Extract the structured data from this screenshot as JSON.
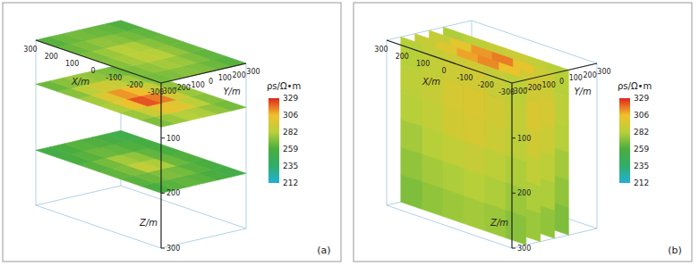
{
  "chart_data": [
    {
      "type": "horizontal_slices",
      "panel_label": "(a)",
      "xlabel": "X/m",
      "ylabel": "Y/m",
      "zlabel": "Z/m",
      "xlim": [
        -300,
        300
      ],
      "xticks": [
        -300,
        -200,
        -100,
        0,
        100,
        200,
        300
      ],
      "ylim": [
        -300,
        300
      ],
      "yticks": [
        -300,
        -200,
        -100,
        0,
        100,
        200,
        300
      ],
      "zlim": [
        0,
        300
      ],
      "zticks": [
        100,
        200,
        300
      ],
      "slice_positions": [
        0,
        80,
        200
      ],
      "cells": [
        [
          [
            268,
            270,
            272,
            270,
            266,
            262
          ],
          [
            270,
            274,
            278,
            276,
            270,
            264
          ],
          [
            272,
            278,
            284,
            282,
            274,
            266
          ],
          [
            270,
            276,
            282,
            280,
            272,
            266
          ],
          [
            266,
            270,
            274,
            272,
            268,
            264
          ],
          [
            262,
            266,
            268,
            266,
            264,
            260
          ]
        ],
        [
          [
            270,
            276,
            282,
            280,
            274,
            268
          ],
          [
            276,
            290,
            302,
            298,
            284,
            272
          ],
          [
            280,
            304,
            322,
            316,
            292,
            276
          ],
          [
            278,
            298,
            312,
            306,
            288,
            274
          ],
          [
            272,
            284,
            292,
            288,
            278,
            270
          ],
          [
            266,
            272,
            276,
            274,
            270,
            266
          ]
        ],
        [
          [
            258,
            262,
            264,
            262,
            258,
            254
          ],
          [
            262,
            266,
            270,
            268,
            262,
            258
          ],
          [
            264,
            270,
            286,
            280,
            266,
            260
          ],
          [
            262,
            268,
            278,
            274,
            264,
            258
          ],
          [
            258,
            262,
            266,
            264,
            260,
            256
          ],
          [
            254,
            258,
            262,
            260,
            256,
            252
          ]
        ]
      ],
      "colorbar_label": "ρs/Ω•m",
      "colorbar_range": [
        212,
        329
      ],
      "colorbar_ticks": [
        212,
        235,
        259,
        282,
        306,
        329
      ]
    },
    {
      "type": "vertical_slices",
      "panel_label": "(b)",
      "xlabel": "X/m",
      "ylabel": "Y/m",
      "zlabel": "Z/m",
      "xlim": [
        -300,
        300
      ],
      "xticks": [
        -300,
        -200,
        -100,
        0,
        100,
        200,
        300
      ],
      "ylim": [
        -300,
        300
      ],
      "yticks": [
        -300,
        -200,
        -100,
        0,
        100,
        200,
        300
      ],
      "zlim": [
        0,
        300
      ],
      "zticks": [
        100,
        200,
        300
      ],
      "slice_positions": [
        -200,
        -100,
        0,
        100
      ],
      "cells": [
        [
          [
            284,
            288,
            292,
            290,
            286,
            282
          ],
          [
            286,
            292,
            296,
            294,
            288,
            284
          ],
          [
            284,
            290,
            294,
            292,
            286,
            282
          ],
          [
            280,
            284,
            288,
            286,
            282,
            278
          ],
          [
            276,
            280,
            282,
            280,
            278,
            274
          ],
          [
            272,
            276,
            278,
            276,
            274,
            270
          ]
        ],
        [
          [
            292,
            304,
            314,
            310,
            298,
            288
          ],
          [
            296,
            316,
            326,
            322,
            304,
            290
          ],
          [
            292,
            306,
            316,
            312,
            298,
            288
          ],
          [
            286,
            292,
            298,
            296,
            290,
            284
          ],
          [
            280,
            284,
            288,
            286,
            282,
            278
          ],
          [
            276,
            278,
            280,
            278,
            276,
            272
          ]
        ],
        [
          [
            290,
            302,
            316,
            312,
            300,
            288
          ],
          [
            294,
            314,
            328,
            324,
            306,
            292
          ],
          [
            290,
            304,
            318,
            314,
            300,
            288
          ],
          [
            284,
            292,
            300,
            298,
            290,
            284
          ],
          [
            280,
            284,
            288,
            286,
            282,
            278
          ],
          [
            274,
            278,
            280,
            278,
            276,
            272
          ]
        ],
        [
          [
            282,
            286,
            290,
            288,
            284,
            280
          ],
          [
            284,
            290,
            294,
            292,
            288,
            282
          ],
          [
            282,
            288,
            292,
            290,
            286,
            280
          ],
          [
            278,
            282,
            286,
            284,
            280,
            276
          ],
          [
            274,
            278,
            280,
            278,
            276,
            272
          ],
          [
            270,
            274,
            276,
            274,
            272,
            268
          ]
        ]
      ],
      "colorbar_label": "ρs/Ω•m",
      "colorbar_range": [
        212,
        329
      ],
      "colorbar_ticks": [
        212,
        235,
        259,
        282,
        306,
        329
      ]
    }
  ]
}
